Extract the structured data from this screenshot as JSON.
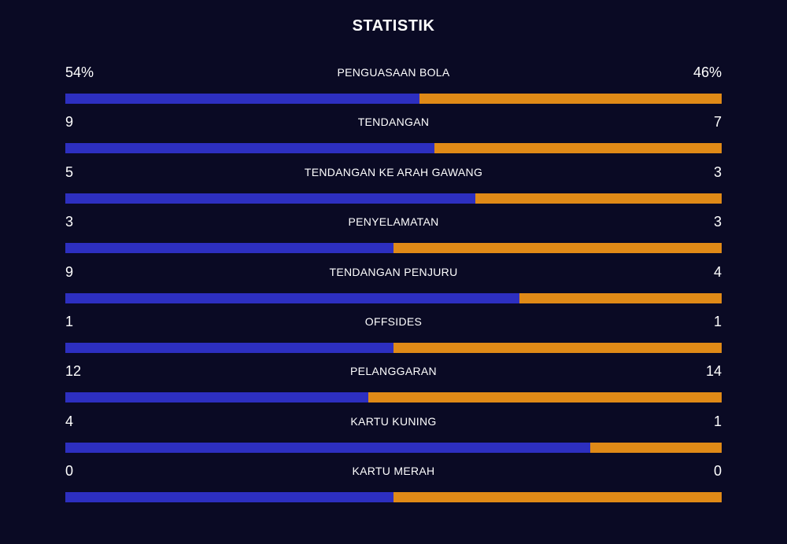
{
  "title": "STATISTIK",
  "colors": {
    "background": "#0a0a24",
    "home": "#2d2fc0",
    "away": "#e08a17"
  },
  "stats": [
    {
      "label": "PENGUASAAN BOLA",
      "home": "54%",
      "away": "46%",
      "home_share": 0.54
    },
    {
      "label": "TENDANGAN",
      "home": "9",
      "away": "7",
      "home_share": 0.5625
    },
    {
      "label": "TENDANGAN KE ARAH GAWANG",
      "home": "5",
      "away": "3",
      "home_share": 0.625
    },
    {
      "label": "PENYELAMATAN",
      "home": "3",
      "away": "3",
      "home_share": 0.5
    },
    {
      "label": "TENDANGAN PENJURU",
      "home": "9",
      "away": "4",
      "home_share": 0.6923
    },
    {
      "label": "OFFSIDES",
      "home": "1",
      "away": "1",
      "home_share": 0.5
    },
    {
      "label": "PELANGGARAN",
      "home": "12",
      "away": "14",
      "home_share": 0.4615
    },
    {
      "label": "KARTU KUNING",
      "home": "4",
      "away": "1",
      "home_share": 0.8
    },
    {
      "label": "KARTU MERAH",
      "home": "0",
      "away": "0",
      "home_share": 0.5
    }
  ]
}
